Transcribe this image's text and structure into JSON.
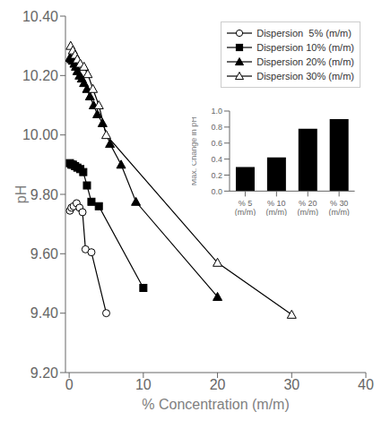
{
  "chart_data": [
    {
      "type": "line",
      "xlabel": "% Concentration (m/m)",
      "ylabel": "pH",
      "xlim": [
        -0.5,
        40
      ],
      "ylim": [
        9.2,
        10.4
      ],
      "xticks": [
        0,
        10,
        20,
        30,
        40
      ],
      "yticks": [
        {
          "value": 9.2,
          "label": "9.20"
        },
        {
          "value": 9.4,
          "label": "9.40"
        },
        {
          "value": 9.6,
          "label": "9.60"
        },
        {
          "value": 9.8,
          "label": "9.80"
        },
        {
          "value": 10.0,
          "label": "10.00"
        },
        {
          "value": 10.2,
          "label": "10.20"
        },
        {
          "value": 10.4,
          "label": "10.40"
        }
      ],
      "legend": "upper right",
      "grid": false,
      "series": [
        {
          "name": "Dispersion  5% (m/m)",
          "color": "#000000",
          "marker": "circle-open",
          "x": [
            0.1,
            0.3,
            0.6,
            1.0,
            1.4,
            1.8,
            2.2,
            3.0,
            5.0
          ],
          "values": [
            9.745,
            9.755,
            9.76,
            9.77,
            9.755,
            9.74,
            9.615,
            9.605,
            9.4
          ]
        },
        {
          "name": "Dispersion 10% (m/m)",
          "color": "#000000",
          "marker": "square",
          "x": [
            0.1,
            0.3,
            0.5,
            0.8,
            1.1,
            1.5,
            1.9,
            2.4,
            3.0,
            4.0,
            10.0
          ],
          "values": [
            9.905,
            9.9,
            9.9,
            9.895,
            9.89,
            9.885,
            9.875,
            9.83,
            9.775,
            9.76,
            9.485
          ]
        },
        {
          "name": "Dispersion 20% (m/m)",
          "color": "#000000",
          "marker": "triangle",
          "x": [
            0.1,
            0.3,
            0.5,
            0.7,
            0.9,
            1.1,
            1.4,
            1.7,
            2.0,
            2.4,
            2.8,
            3.3,
            3.8,
            4.5,
            5.5,
            7.0,
            9.0,
            20.0
          ],
          "values": [
            10.26,
            10.255,
            10.25,
            10.24,
            10.23,
            10.215,
            10.2,
            10.19,
            10.175,
            10.155,
            10.13,
            10.1,
            10.07,
            10.04,
            9.97,
            9.9,
            9.775,
            9.455
          ]
        },
        {
          "name": "Dispersion 30% (m/m)",
          "color": "#000000",
          "marker": "triangle-open",
          "x": [
            0.2,
            0.5,
            0.8,
            1.1,
            1.5,
            2.0,
            2.5,
            3.2,
            4.0,
            5.0,
            20.0,
            30.0
          ],
          "values": [
            10.3,
            10.285,
            10.27,
            10.255,
            10.24,
            10.23,
            10.205,
            10.155,
            10.1,
            10.0,
            9.57,
            9.395
          ]
        }
      ]
    },
    {
      "type": "bar",
      "categories": [
        "% 5\n(m/m)",
        "% 10\n(m/m)",
        "% 20\n(m/m)",
        "% 30\n(m/m)"
      ],
      "values": [
        0.3,
        0.42,
        0.78,
        0.9
      ],
      "ylabel": "Max. Change in pH",
      "ylim": [
        0.0,
        1.0
      ],
      "yticks": [
        {
          "value": 0.0,
          "label": "0.0"
        },
        0.2,
        0.4,
        0.6,
        0.8,
        {
          "value": 1.0,
          "label": "1.0"
        }
      ],
      "color": "#000000",
      "grid": false
    }
  ]
}
